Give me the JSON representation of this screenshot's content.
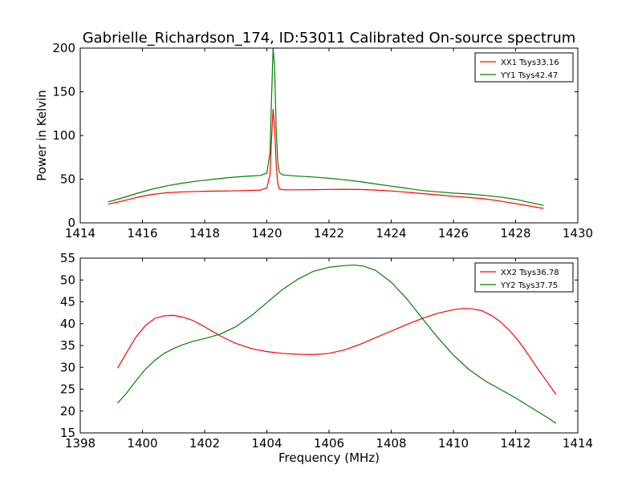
{
  "figure": {
    "title": "Gabrielle_Richardson_174, ID:53011 Calibrated On-source spectrum",
    "xlabel": "Frequency (MHz)"
  },
  "colors": {
    "xx": "#ff0000",
    "yy": "#008000"
  },
  "chart_data": [
    {
      "type": "line",
      "ylabel": "Power in Kelvin",
      "xlabel": "",
      "xlim": [
        1414,
        1430
      ],
      "ylim": [
        0,
        200
      ],
      "xticks": [
        1414,
        1416,
        1418,
        1420,
        1422,
        1424,
        1426,
        1428,
        1430
      ],
      "yticks": [
        0,
        50,
        100,
        150,
        200
      ],
      "grid": false,
      "legend_position": "top-right",
      "series": [
        {
          "name": "XX1 Tsys33.16",
          "color": "#ff0000",
          "x": [
            1414.9,
            1415.3,
            1415.8,
            1416.3,
            1416.8,
            1417.3,
            1417.8,
            1418.3,
            1418.8,
            1419.3,
            1419.8,
            1420.0,
            1420.1,
            1420.15,
            1420.2,
            1420.25,
            1420.3,
            1420.35,
            1420.4,
            1420.5,
            1420.7,
            1421.0,
            1421.5,
            1422.0,
            1422.5,
            1423.0,
            1423.5,
            1424.0,
            1424.5,
            1425.0,
            1425.5,
            1426.0,
            1426.5,
            1427.0,
            1427.5,
            1428.0,
            1428.5,
            1428.9
          ],
          "y": [
            21.5,
            24.5,
            29,
            32.5,
            34.5,
            35.5,
            36,
            36.3,
            36.5,
            37,
            37.5,
            40,
            55,
            95,
            130,
            110,
            68,
            45,
            39,
            38,
            37.8,
            37.8,
            38,
            38.3,
            38.4,
            38.2,
            37.5,
            36.5,
            35,
            33.5,
            32,
            30.5,
            29,
            27.5,
            25,
            22,
            19,
            16.5
          ]
        },
        {
          "name": "YY1 Tsys42.47",
          "color": "#008000",
          "x": [
            1414.9,
            1415.3,
            1415.8,
            1416.3,
            1416.8,
            1417.3,
            1417.8,
            1418.3,
            1418.8,
            1419.3,
            1419.8,
            1420.0,
            1420.1,
            1420.15,
            1420.2,
            1420.25,
            1420.3,
            1420.35,
            1420.4,
            1420.5,
            1420.7,
            1421.0,
            1421.5,
            1422.0,
            1422.5,
            1423.0,
            1423.5,
            1424.0,
            1424.5,
            1425.0,
            1425.5,
            1426.0,
            1426.5,
            1427.0,
            1427.5,
            1428.0,
            1428.5,
            1428.9
          ],
          "y": [
            24,
            28,
            33.5,
            38.5,
            42.5,
            45.5,
            48,
            50,
            51.8,
            53.2,
            54.3,
            57,
            80,
            140,
            200,
            178,
            110,
            70,
            58,
            55,
            54.3,
            53.5,
            52.5,
            51,
            49.3,
            47.2,
            44.5,
            42,
            39.5,
            37,
            35.5,
            34,
            33,
            31.5,
            29.5,
            27,
            23,
            20
          ]
        }
      ]
    },
    {
      "type": "line",
      "ylabel": "",
      "xlabel": "Frequency (MHz)",
      "xlim": [
        1398,
        1414
      ],
      "ylim": [
        15,
        55
      ],
      "xticks": [
        1398,
        1400,
        1402,
        1404,
        1406,
        1408,
        1410,
        1412,
        1414
      ],
      "yticks": [
        15,
        20,
        25,
        30,
        35,
        40,
        45,
        50,
        55
      ],
      "grid": false,
      "legend_position": "top-right",
      "series": [
        {
          "name": "XX2 Tsys36.78",
          "color": "#ff0000",
          "x": [
            1399.2,
            1399.5,
            1399.8,
            1400.1,
            1400.4,
            1400.7,
            1401.0,
            1401.3,
            1401.6,
            1402.0,
            1402.5,
            1403.0,
            1403.5,
            1404.0,
            1404.5,
            1405.0,
            1405.5,
            1406.0,
            1406.5,
            1407.0,
            1407.5,
            1408.0,
            1408.5,
            1409.0,
            1409.5,
            1410.0,
            1410.3,
            1410.6,
            1410.9,
            1411.2,
            1411.5,
            1411.8,
            1412.1,
            1412.4,
            1412.7,
            1413.0,
            1413.3
          ],
          "y": [
            29.8,
            33.5,
            37,
            39.6,
            41.2,
            41.8,
            41.9,
            41.5,
            40.8,
            39.3,
            37.2,
            35.5,
            34.3,
            33.6,
            33.2,
            33,
            32.9,
            33.2,
            34,
            35.3,
            36.8,
            38.3,
            39.8,
            41.2,
            42.4,
            43.2,
            43.5,
            43.4,
            43,
            42,
            40.5,
            38.5,
            36,
            33,
            29.8,
            26.8,
            23.8
          ]
        },
        {
          "name": "YY2 Tsys37.75",
          "color": "#008000",
          "x": [
            1399.2,
            1399.5,
            1399.8,
            1400.1,
            1400.4,
            1400.7,
            1401.0,
            1401.3,
            1401.6,
            1402.0,
            1402.5,
            1403.0,
            1403.5,
            1404.0,
            1404.5,
            1405.0,
            1405.5,
            1406.0,
            1406.5,
            1406.8,
            1407.1,
            1407.5,
            1408.0,
            1408.5,
            1409.0,
            1409.5,
            1410.0,
            1410.5,
            1411.0,
            1411.5,
            1412.0,
            1412.5,
            1413.0,
            1413.3
          ],
          "y": [
            21.8,
            24.2,
            27,
            29.6,
            31.6,
            33.2,
            34.3,
            35.2,
            35.9,
            36.6,
            37.6,
            39.3,
            41.8,
            44.8,
            47.8,
            50.2,
            52,
            52.9,
            53.3,
            53.4,
            53.2,
            52.2,
            49.5,
            45.7,
            41.2,
            36.8,
            32.8,
            29.5,
            27,
            25,
            23,
            20.8,
            18.6,
            17.2
          ]
        }
      ]
    }
  ]
}
